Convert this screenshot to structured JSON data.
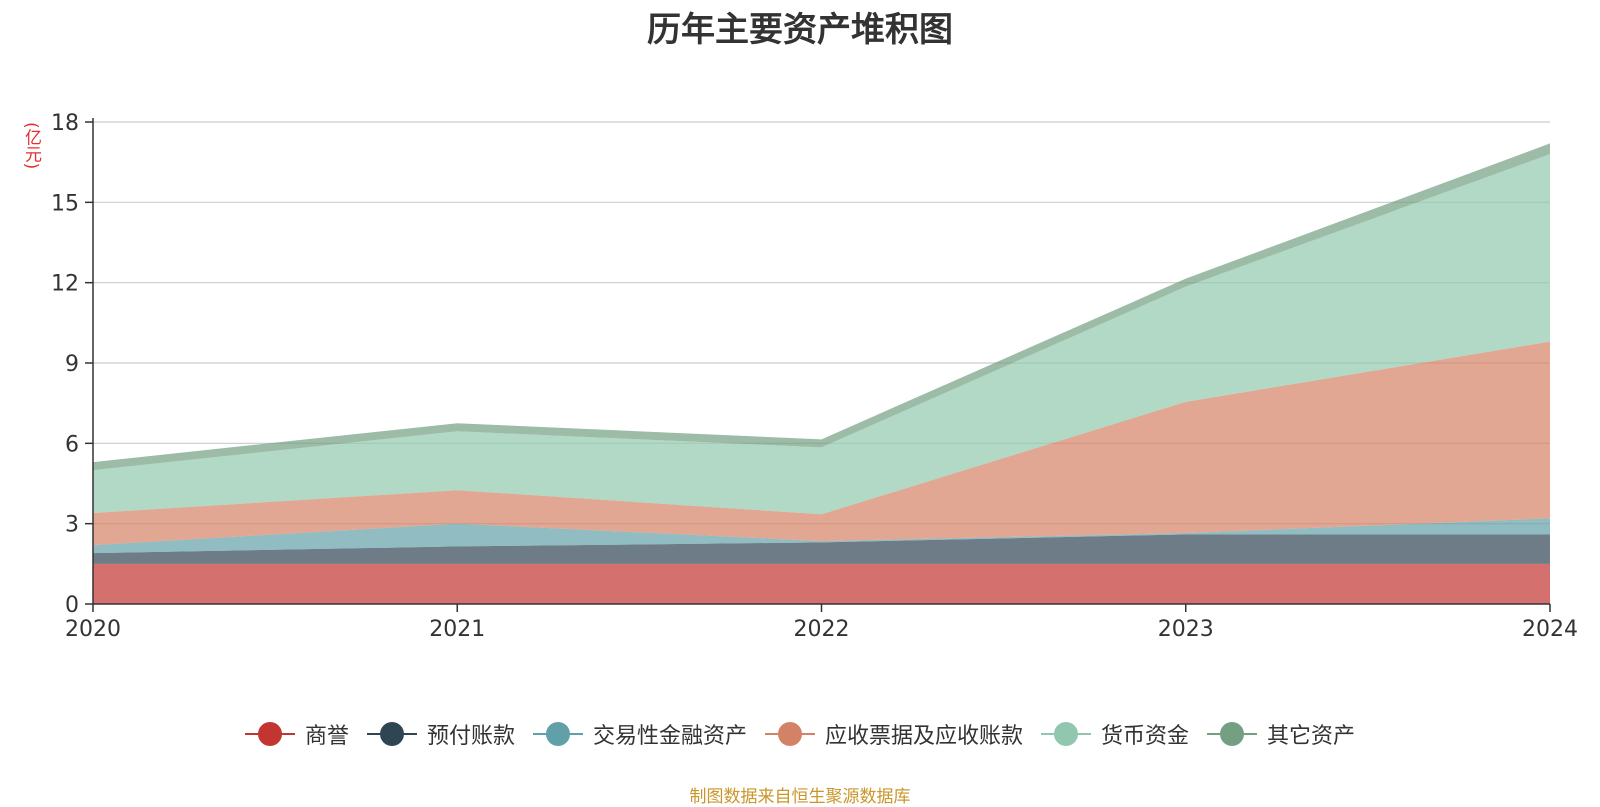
{
  "chart_data": {
    "type": "area",
    "title": "历年主要资产堆积图",
    "unit_label": "(亿元)",
    "stacked": true,
    "x": [
      "2020",
      "2021",
      "2022",
      "2023",
      "2024"
    ],
    "ylim": [
      0,
      18
    ],
    "yticks": [
      "0",
      "3",
      "6",
      "9",
      "12",
      "15",
      "18"
    ],
    "grid": true,
    "legend_position": "bottom",
    "series": [
      {
        "name": "商誉",
        "color": "#c23531",
        "values": [
          1.5,
          1.5,
          1.5,
          1.5,
          1.5
        ]
      },
      {
        "name": "预付账款",
        "color": "#2f4554",
        "values": [
          0.4,
          0.65,
          0.8,
          1.1,
          1.1
        ]
      },
      {
        "name": "交易性金融资产",
        "color": "#61a0a8",
        "values": [
          0.3,
          0.85,
          0.05,
          0.05,
          0.6
        ]
      },
      {
        "name": "应收票据及应收账款",
        "color": "#d48265",
        "values": [
          1.2,
          1.25,
          1.0,
          4.9,
          6.6
        ]
      },
      {
        "name": "货币资金",
        "color": "#91c7ae",
        "values": [
          1.6,
          2.2,
          2.5,
          4.3,
          7.0
        ]
      },
      {
        "name": "其它资产",
        "color": "#749f83",
        "values": [
          0.3,
          0.3,
          0.3,
          0.3,
          0.4
        ]
      }
    ]
  },
  "source": "制图数据来自恒生聚源数据库"
}
